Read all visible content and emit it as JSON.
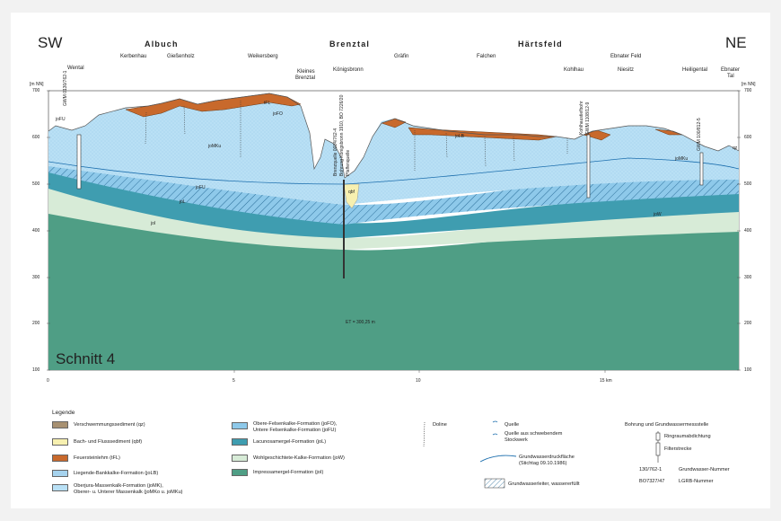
{
  "header": {
    "left_direction": "SW",
    "right_direction": "NE",
    "regions": [
      "Albuch",
      "Brenztal",
      "Härtsfeld"
    ],
    "places": {
      "wental": "Wental",
      "kerbenhau": "Kerbenhau",
      "giessenholz": "Gießenholz",
      "weikersberg": "Weikersberg",
      "kleines_brenztal_1": "Kleines",
      "kleines_brenztal_2": "Brenztal",
      "koenigsbronn": "Königsbronn",
      "graefin": "Gräfin",
      "falchen": "Falchen",
      "kohlhau": "Kohlhau",
      "ebnater_feld": "Ebnater Feld",
      "niesitz": "Niesitz",
      "heiligental": "Heiligental",
      "ebnater_tal_1": "Ebnater",
      "ebnater_tal_2": "Tal"
    }
  },
  "axes": {
    "unit_left": "[m NN]",
    "unit_right": "[m NN]",
    "y_ticks": [
      "700",
      "600",
      "500",
      "400",
      "300",
      "200",
      "100"
    ],
    "x_ticks": [
      "0",
      "5",
      "10",
      "15 km"
    ]
  },
  "section_title": "Schnitt 4",
  "wells": {
    "gwm1": "GWM 0130/762-1",
    "brenzquelle_1": "Brenzquelle 0024/762-4",
    "brenzquelle_2": "Bohrung Königsbronn 1910, BO 7226/20",
    "brenzquelle_3": "Pfaffenquelle",
    "koenigsbronn_depth": "ET = 300,25 m",
    "kohlhau_1": "Kohlhaustiefbohr",
    "kohlhau_2": "GWM 1108/12-9",
    "gwm3": "GWM 100/812-5"
  },
  "unit_labels": {
    "jofu": "joFU",
    "jofo": "joFO",
    "jomku": "joMKu",
    "jofu2": "joFU",
    "jol": "joL",
    "jow": "joW",
    "joi": "joI",
    "tfl": "tFL",
    "jolb": "joLB",
    "qbf": "qbf",
    "qz": "qz",
    "jomk": "joMKu"
  },
  "legend": {
    "title": "Legende",
    "items": [
      {
        "label": "Verschwemmungssediment (qz)",
        "color": "#a89172"
      },
      {
        "label": "Bach- und Flusssediment (qbf)",
        "color": "#f7f0b0"
      },
      {
        "label": "Feuersteinlehm (tFL)",
        "color": "#c8692c"
      },
      {
        "label": "Liegende-Bankkalke-Formation (joLB)",
        "color": "#a6d3ee"
      },
      {
        "label_1": "Oberjura-Massenkalk-Formation (joMK),",
        "label_2": "Oberer- u. Unterer Massenkalk (joMKo u. joMKu)",
        "color": "#b9e0f5"
      },
      {
        "label_1": "Obere-Felsenkalke-Formation (joFO),",
        "label_2": "Untere Felsenkalke-Formation (joFU)",
        "color": "#8ec9ea"
      },
      {
        "label": "Lacunosamergel-Formation (joL)",
        "color": "#3f9db0"
      },
      {
        "label": "Wohlgeschichtete-Kalke-Formation (joW)",
        "color": "#d7ebd7"
      },
      {
        "label": "Impressamergel-Formation (joI)",
        "color": "#4f9e85"
      }
    ],
    "symbols": {
      "doline": "Doline",
      "quelle": "Quelle",
      "quelle_schwebend_1": "Quelle aus schwebendem",
      "quelle_schwebend_2": "Stockwerk",
      "druckflaeche_1": "Grundwasserdruckfläche",
      "druckflaeche_2": "(Stichtag 09.10.1986)",
      "aquifer": "Grundwasserleiter, wassererfüllt"
    },
    "borehole": {
      "title": "Bohrung und Grundwassermessstelle",
      "ring": "Ringraumabdichtung",
      "filter": "Filterstrecke",
      "gw_number_example": "130/762-1",
      "gw_number_label": "Grundwasser-Nummer",
      "lgrb_example": "BO7327/47",
      "lgrb_label": "LGRB-Nummer"
    }
  }
}
